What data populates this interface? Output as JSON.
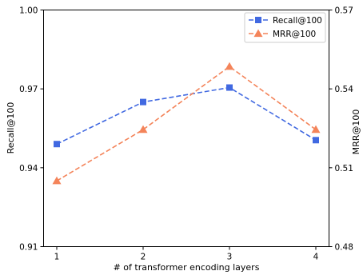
{
  "chart_data": {
    "type": "line",
    "xlabel": "# of transformer encoding layers",
    "x": [
      1,
      2,
      3,
      4
    ],
    "xticks": [
      "1",
      "2",
      "3",
      "4"
    ],
    "ylabel_left": "Recall@100",
    "ylabel_right": "MRR@100",
    "ylim_left": [
      0.91,
      1.0
    ],
    "ylim_right": [
      0.48,
      0.57
    ],
    "yticks_left": [
      "0.91",
      "0.94",
      "0.97",
      "1.00"
    ],
    "yticks_right": [
      "0.48",
      "0.51",
      "0.54",
      "0.57"
    ],
    "grid": false,
    "legend_position": "top-right",
    "series": [
      {
        "name": "Recall@100",
        "axis": "left",
        "color": "#4169e1",
        "marker": "square",
        "linestyle": "dashed",
        "values": [
          0.949,
          0.965,
          0.9705,
          0.9505
        ]
      },
      {
        "name": "MRR@100",
        "axis": "right",
        "color": "#f4845a",
        "marker": "triangle",
        "linestyle": "dashed",
        "values": [
          0.505,
          0.5245,
          0.5485,
          0.5245
        ]
      }
    ]
  }
}
